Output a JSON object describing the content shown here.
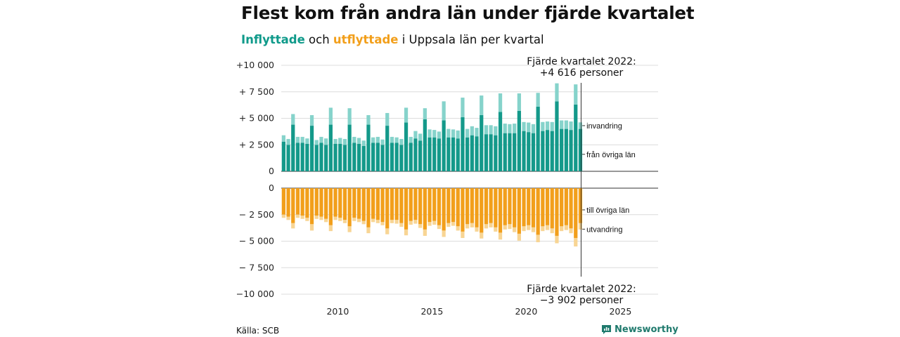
{
  "title": "Flest kom från andra län under fjärde kvartalet",
  "subtitle": {
    "part1": "Inflyttade",
    "part2": " och ",
    "part3": "utflyttade",
    "part4": " i Uppsala län per kvartal"
  },
  "source": "Källa: SCB",
  "brand": "Newsworthy",
  "colors": {
    "in_dark": "#14998a",
    "in_light": "#86d3cb",
    "out_dark": "#f29f1b",
    "out_light": "#f8d594",
    "accent_in": "#0f9a8a",
    "accent_out": "#f29f1b",
    "brand": "#1f7a6d"
  },
  "annotations": {
    "top_line1": "Fjärde kvartalet 2022:",
    "top_line2": "+4 616 personer",
    "bottom_line1": "Fjärde kvartalet 2022:",
    "bottom_line2": "−3 902 personer"
  },
  "chart_data": {
    "type": "bar",
    "x_start": "2007 Q1",
    "x_ticks": [
      "2010",
      "2015",
      "2020",
      "2025"
    ],
    "x_range": [
      2007,
      2027
    ],
    "panels": [
      {
        "name": "inflyttade",
        "ylim": [
          0,
          10000
        ],
        "y_ticks": [
          "0",
          "+ 2 500",
          "+ 5 000",
          "+ 7 500",
          "+10 000"
        ],
        "series": [
          {
            "name": "från övriga län",
            "values": [
              2800,
              2500,
              4400,
              2700,
              2700,
              2600,
              4300,
              2500,
              2700,
              2500,
              4400,
              2600,
              2600,
              2500,
              4400,
              2700,
              2600,
              2400,
              4400,
              2700,
              2700,
              2500,
              4300,
              2700,
              2700,
              2500,
              4600,
              2700,
              3100,
              2900,
              4900,
              3200,
              3200,
              3100,
              4800,
              3200,
              3200,
              3100,
              5100,
              3200,
              3400,
              3300,
              5300,
              3500,
              3500,
              3400,
              5600,
              3600,
              3600,
              3600,
              5700,
              3800,
              3700,
              3600,
              6100,
              3800,
              3900,
              3800,
              6600,
              4000,
              4000,
              3900,
              6300,
              4000
            ],
            "segment_label": "från övriga län"
          },
          {
            "name": "invandring",
            "values": [
              600,
              550,
              1000,
              550,
              550,
              500,
              1000,
              450,
              550,
              600,
              1600,
              450,
              550,
              550,
              1550,
              550,
              550,
              500,
              900,
              500,
              550,
              500,
              1200,
              550,
              500,
              550,
              1400,
              550,
              700,
              650,
              1050,
              750,
              700,
              650,
              1800,
              800,
              750,
              750,
              1850,
              800,
              850,
              800,
              1850,
              850,
              850,
              850,
              1750,
              900,
              850,
              900,
              1650,
              850,
              900,
              850,
              1300,
              850,
              800,
              850,
              1700,
              800,
              800,
              800,
              1900,
              616
            ]
          }
        ]
      },
      {
        "name": "utflyttade",
        "ylim": [
          -10000,
          0
        ],
        "y_ticks": [
          "0",
          "− 2 500",
          "− 5 000",
          "− 7 500",
          "−10 000"
        ],
        "series": [
          {
            "name": "till övriga län",
            "values": [
              -2500,
              -2700,
              -3300,
              -2500,
              -2600,
              -2800,
              -3400,
              -2600,
              -2700,
              -2900,
              -3500,
              -2700,
              -2800,
              -3000,
              -3600,
              -2800,
              -2900,
              -3100,
              -3700,
              -2900,
              -3000,
              -3200,
              -3800,
              -3000,
              -3000,
              -3300,
              -3900,
              -3100,
              -3000,
              -3400,
              -3900,
              -3200,
              -3100,
              -3500,
              -4000,
              -3300,
              -3200,
              -3600,
              -4100,
              -3400,
              -3300,
              -3700,
              -4200,
              -3400,
              -3300,
              -3700,
              -4200,
              -3500,
              -3400,
              -3700,
              -4300,
              -3600,
              -3500,
              -3700,
              -4400,
              -3600,
              -3500,
              -3800,
              -4500,
              -3600,
              -3500,
              -3800,
              -4700,
              -3302
            ]
          },
          {
            "name": "utvandring",
            "values": [
              -300,
              -300,
              -500,
              -300,
              -300,
              -300,
              -600,
              -300,
              -300,
              -300,
              -550,
              -300,
              -300,
              -300,
              -550,
              -300,
              -300,
              -300,
              -550,
              -300,
              -300,
              -300,
              -550,
              -300,
              -350,
              -350,
              -550,
              -350,
              -350,
              -350,
              -600,
              -350,
              -350,
              -350,
              -600,
              -350,
              -350,
              -400,
              -600,
              -400,
              -400,
              -400,
              -550,
              -400,
              -400,
              -400,
              -650,
              -400,
              -450,
              -450,
              -650,
              -450,
              -450,
              -450,
              -700,
              -450,
              -450,
              -450,
              -700,
              -450,
              -450,
              -450,
              -800,
              -600
            ],
            "segment_label": "utvandring"
          }
        ]
      }
    ]
  }
}
